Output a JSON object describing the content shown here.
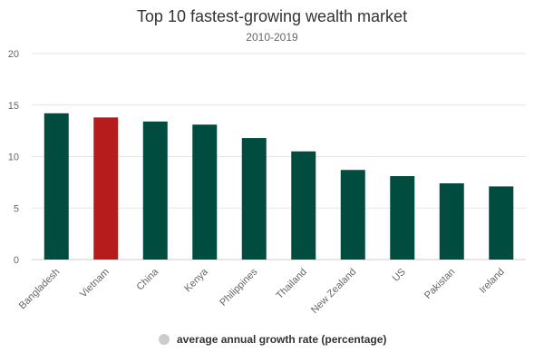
{
  "chart_data": {
    "type": "bar",
    "title": "Top 10 fastest-growing wealth market",
    "subtitle": "2010-2019",
    "categories": [
      "Bangladesh",
      "Vietnam",
      "China",
      "Kenya",
      "Philippines",
      "Thailand",
      "New Zealand",
      "US",
      "Pakistan",
      "Ireland"
    ],
    "series": [
      {
        "name": "average annual growth rate (percentage)",
        "values": [
          14.2,
          13.8,
          13.4,
          13.1,
          11.8,
          10.5,
          8.7,
          8.1,
          7.4,
          7.1
        ]
      }
    ],
    "ylim": [
      0,
      20
    ],
    "yticks": [
      0,
      5,
      10,
      15,
      20
    ],
    "grid": true,
    "legend": "bottom-center",
    "colors": {
      "default": "#004d40",
      "highlight": "#b71c1c",
      "highlight_category": "Vietnam",
      "legend_marker": "#cccccc"
    }
  }
}
